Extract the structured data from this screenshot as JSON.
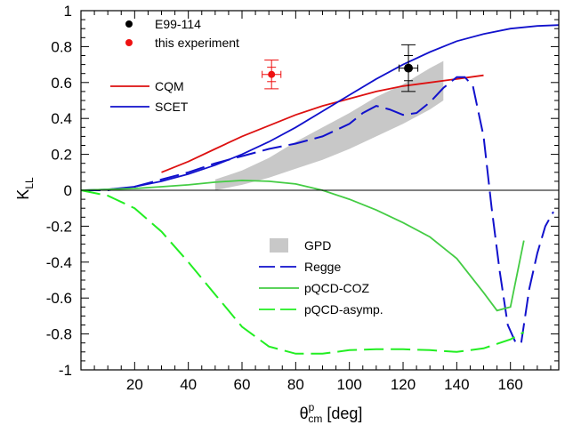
{
  "chart_data": {
    "type": "line",
    "xlabel": {
      "main": "θ",
      "sup": "p",
      "sub": "cm",
      "unit": " [deg]"
    },
    "ylabel": {
      "main": "K",
      "sub": "LL"
    },
    "xlim": [
      0,
      178
    ],
    "ylim": [
      -1,
      1
    ],
    "x_ticks": [
      20,
      40,
      60,
      80,
      100,
      120,
      140,
      160
    ],
    "y_ticks": [
      -1,
      -0.8,
      -0.6,
      -0.4,
      -0.2,
      0,
      0.2,
      0.4,
      0.6,
      0.8,
      1
    ],
    "y_tick_labels": [
      "-1",
      "-0.8",
      "-0.6",
      "-0.4",
      "-0.2",
      "0",
      "0.2",
      "0.4",
      "0.6",
      "0.8",
      "1"
    ],
    "grid": false,
    "zero_line": true,
    "legend_top": [
      {
        "label": "E99-114",
        "marker": "circle",
        "color": "#000000"
      },
      {
        "label": "this experiment",
        "marker": "circle",
        "color": "#ee1111"
      }
    ],
    "legend_mid": [
      {
        "label": "CQM",
        "style": "solid",
        "color": "#dd1111"
      },
      {
        "label": "SCET",
        "style": "solid",
        "color": "#1111cc"
      }
    ],
    "legend_bottom": [
      {
        "label": "GPD",
        "style": "band",
        "color": "#c8c8c8"
      },
      {
        "label": "Regge",
        "style": "dashed",
        "color": "#1111cc"
      },
      {
        "label": "pQCD-COZ",
        "style": "solid",
        "color": "#44cc44"
      },
      {
        "label": "pQCD-asymp.",
        "style": "dashed",
        "color": "#22ee22"
      }
    ],
    "series": [
      {
        "name": "CQM",
        "style": "solid",
        "color": "#dd1111",
        "x": [
          30,
          40,
          50,
          60,
          70,
          80,
          90,
          100,
          110,
          120,
          130,
          140,
          150
        ],
        "y": [
          0.1,
          0.16,
          0.23,
          0.3,
          0.36,
          0.42,
          0.47,
          0.51,
          0.55,
          0.58,
          0.6,
          0.62,
          0.64
        ]
      },
      {
        "name": "SCET",
        "style": "solid",
        "color": "#1111cc",
        "x": [
          0,
          10,
          20,
          30,
          40,
          50,
          60,
          70,
          80,
          90,
          100,
          110,
          120,
          130,
          140,
          150,
          160,
          170,
          178
        ],
        "y": [
          0.0,
          0.005,
          0.02,
          0.05,
          0.09,
          0.14,
          0.2,
          0.27,
          0.35,
          0.44,
          0.53,
          0.62,
          0.7,
          0.77,
          0.83,
          0.87,
          0.9,
          0.915,
          0.92
        ]
      },
      {
        "name": "Regge",
        "style": "dashed",
        "color": "#1111cc",
        "x": [
          0,
          10,
          20,
          30,
          40,
          50,
          60,
          70,
          80,
          90,
          100,
          105,
          110,
          115,
          120,
          125,
          130,
          135,
          140,
          143,
          146,
          150,
          153,
          156,
          159,
          162,
          164,
          167,
          170,
          173,
          176
        ],
        "y": [
          0.0,
          0.0,
          0.02,
          0.06,
          0.1,
          0.15,
          0.19,
          0.23,
          0.26,
          0.3,
          0.37,
          0.43,
          0.47,
          0.45,
          0.42,
          0.43,
          0.49,
          0.57,
          0.63,
          0.63,
          0.58,
          0.3,
          -0.1,
          -0.45,
          -0.75,
          -0.85,
          -0.85,
          -0.55,
          -0.35,
          -0.2,
          -0.12
        ]
      },
      {
        "name": "pQCD-COZ",
        "style": "solid",
        "color": "#44cc44",
        "x": [
          0,
          10,
          20,
          30,
          40,
          50,
          60,
          70,
          80,
          90,
          100,
          110,
          120,
          130,
          140,
          150,
          155,
          160,
          165
        ],
        "y": [
          0.0,
          0.005,
          0.01,
          0.02,
          0.03,
          0.045,
          0.055,
          0.05,
          0.035,
          0.0,
          -0.05,
          -0.11,
          -0.18,
          -0.26,
          -0.38,
          -0.57,
          -0.67,
          -0.65,
          -0.28
        ]
      },
      {
        "name": "pQCD-asymp.",
        "style": "dashed",
        "color": "#22ee22",
        "x": [
          0,
          10,
          20,
          30,
          40,
          50,
          60,
          70,
          80,
          90,
          100,
          110,
          120,
          130,
          140,
          150,
          160,
          165
        ],
        "y": [
          0.0,
          -0.03,
          -0.1,
          -0.23,
          -0.4,
          -0.58,
          -0.76,
          -0.87,
          -0.91,
          -0.91,
          -0.89,
          -0.885,
          -0.885,
          -0.89,
          -0.9,
          -0.88,
          -0.83,
          -0.79
        ]
      }
    ],
    "band": {
      "name": "GPD",
      "color": "#c8c8c8",
      "x": [
        50,
        60,
        70,
        80,
        90,
        100,
        110,
        120,
        130,
        135
      ],
      "upper": [
        0.06,
        0.11,
        0.18,
        0.27,
        0.35,
        0.43,
        0.52,
        0.59,
        0.68,
        0.72
      ],
      "lower": [
        0.0,
        0.03,
        0.07,
        0.12,
        0.17,
        0.23,
        0.3,
        0.37,
        0.45,
        0.5
      ]
    },
    "points": [
      {
        "name": "E99-114",
        "color": "#000000",
        "x": 122,
        "y": 0.68,
        "yerr_inner": 0.07,
        "yerr_outer": 0.13,
        "xerr": 3.5,
        "radius": 5
      },
      {
        "name": "this experiment",
        "color": "#ee1111",
        "x": 71,
        "y": 0.645,
        "yerr_inner": 0.04,
        "yerr_outer": 0.08,
        "xerr": 3.5,
        "radius": 4
      }
    ]
  }
}
